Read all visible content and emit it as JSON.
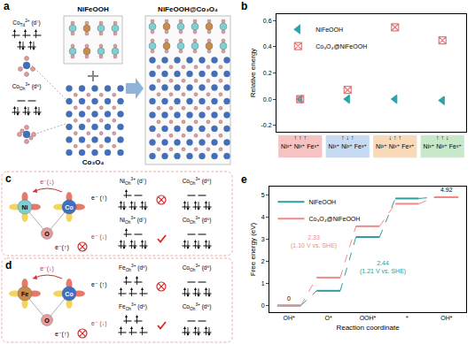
{
  "panels": {
    "a": {
      "label": "a",
      "top": "NiFeOOH",
      "bottom": "Co₃O₄",
      "combined": "NiFeOOH@Co₃O₄",
      "ions": [
        {
          "el": "Co",
          "site": "Td",
          "charge": "2+",
          "config": "(d⁷)",
          "lower": [
            2,
            2
          ],
          "upper": [
            1,
            1,
            1
          ]
        },
        {
          "el": "Co",
          "site": "Oh",
          "charge": "3+",
          "config": "(d⁶)",
          "lower": [
            2,
            2,
            2
          ],
          "upper": [
            0,
            0
          ]
        }
      ]
    },
    "c": {
      "label": "c",
      "atoms": [
        "Ni",
        "O",
        "Co"
      ],
      "transfer_allowed": "e⁻(↓)",
      "transfer_blocked": "e⁻(↑)",
      "rows": [
        {
          "spin": "e⁻ (↑)",
          "allowed": false,
          "ions": [
            {
              "el": "Ni",
              "site": "Oh",
              "charge": "3+",
              "config": "(d⁷)",
              "lower": [
                2,
                2,
                2
              ],
              "upper": [
                1,
                0
              ]
            },
            {
              "el": "Co",
              "site": "Oh",
              "charge": "3+",
              "config": "(d⁶)",
              "lower": [
                2,
                2,
                2
              ],
              "upper": [
                0,
                0
              ]
            }
          ]
        },
        {
          "spin": "e⁻ (↓)",
          "allowed": true,
          "ions": [
            {
              "el": "Ni",
              "site": "Oh",
              "charge": "3+",
              "config": "(d⁷)",
              "lower": [
                2,
                2,
                2
              ],
              "upper": [
                1,
                0
              ]
            },
            {
              "el": "Co",
              "site": "Oh",
              "charge": "3+",
              "config": "(d⁶)",
              "lower": [
                2,
                2,
                2
              ],
              "upper": [
                0,
                0
              ]
            }
          ]
        }
      ]
    },
    "d": {
      "label": "d",
      "atoms": [
        "Fe",
        "O",
        "Co"
      ],
      "transfer_allowed": "e⁻(↓)",
      "transfer_blocked": "e⁻(↑)",
      "rows": [
        {
          "spin": "e⁻ (↑)",
          "allowed": false,
          "ions": [
            {
              "el": "Fe",
              "site": "Oh",
              "charge": "3+",
              "config": "(d⁵)",
              "lower": [
                1,
                1,
                1
              ],
              "upper": [
                1,
                1
              ]
            },
            {
              "el": "Co",
              "site": "Oh",
              "charge": "3+",
              "config": "(d⁶)",
              "lower": [
                2,
                2,
                2
              ],
              "upper": [
                0,
                0
              ]
            }
          ]
        },
        {
          "spin": "e⁻ (↓)",
          "allowed": true,
          "ions": [
            {
              "el": "Fe",
              "site": "Oh",
              "charge": "3+",
              "config": "(d⁵)",
              "lower": [
                1,
                1,
                1
              ],
              "upper": [
                1,
                1
              ]
            },
            {
              "el": "Co",
              "site": "Oh",
              "charge": "3+",
              "config": "(d⁶)",
              "lower": [
                2,
                2,
                2
              ],
              "upper": [
                0,
                0
              ]
            }
          ]
        }
      ]
    }
  },
  "chart_data": [
    {
      "panel": "b",
      "type": "scatter",
      "y_label": "Relative energy",
      "categories": [
        "↑↑↑ Ni³⁺ Ni³⁺ Fe³⁺",
        "↑↓↑ Ni³⁺ Ni³⁺ Fe³⁺",
        "↓↑↑ Ni³⁺ Ni³⁺ Fe³⁺",
        "↑↑↓ Ni³⁺ Ni³⁺ Fe³⁺"
      ],
      "series": [
        {
          "name": "NiFeOOH",
          "color": "#2ea3a8",
          "marker": "triangle-left",
          "values": [
            0,
            0,
            0,
            -0.01
          ]
        },
        {
          "name": "Co₃O₄@NiFeOOH",
          "color": "#e27a7a",
          "marker": "square-x-open",
          "values": [
            0,
            0.07,
            0.55,
            0.45
          ]
        }
      ],
      "ylim": [
        -0.25,
        0.65
      ],
      "yticks": [
        -0.2,
        {
          "value": 0,
          "label": "0.0"
        },
        0.2,
        0.4,
        0.6
      ],
      "legend": "top-left",
      "grid": false
    },
    {
      "panel": "e",
      "type": "line",
      "x_label": "Reaction coordinate",
      "y_label": "Free energy (eV)",
      "categories": [
        "OH*",
        "O*",
        "OOH*",
        "*",
        "OH*"
      ],
      "series": [
        {
          "name": "NiFeOOH",
          "color": "#2e9c9c",
          "values": [
            0,
            0.67,
            3.11,
            4.86,
            4.92
          ],
          "step_label": "2.44",
          "step_note": "(1.21 V vs. SHE)",
          "step_at": 2
        },
        {
          "name": "Co₃O₄@NiFeOOH",
          "color": "#f08a8a",
          "values": [
            0,
            1.27,
            3.6,
            4.62,
            4.92
          ],
          "step_label": "2.33",
          "step_note": "(1.10 V vs. SHE)",
          "step_at": 2
        }
      ],
      "end_labels": [
        {
          "category": 0,
          "text": "0"
        },
        {
          "category": 4,
          "text": "4.92"
        }
      ],
      "ylim": [
        -0.3,
        5.4
      ],
      "yticks": [
        0,
        1,
        2,
        3,
        4,
        5
      ],
      "legend": "top-left",
      "grid": false
    }
  ]
}
